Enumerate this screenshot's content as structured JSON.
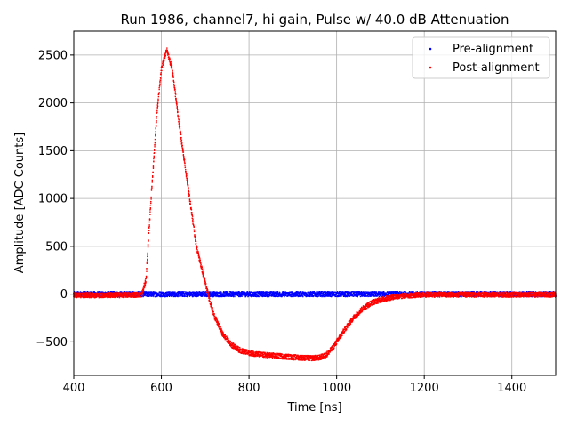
{
  "chart_data": {
    "type": "scatter",
    "title": "Run 1986, channel7, hi gain, Pulse w/ 40.0 dB Attenuation",
    "xlabel": "Time [ns]",
    "ylabel": "Amplitude [ADC Counts]",
    "xlim": [
      400,
      1500
    ],
    "ylim": [
      -850,
      2750
    ],
    "xticks": [
      400,
      600,
      800,
      1000,
      1200,
      1400
    ],
    "yticks": [
      -500,
      0,
      500,
      1000,
      1500,
      2000,
      2500
    ],
    "grid": true,
    "legend_position": "top-right",
    "series": [
      {
        "name": "Pre-alignment",
        "color": "#0000ff",
        "x": [
          400,
          500,
          560,
          580,
          600,
          610,
          620,
          640,
          660,
          680,
          700,
          720,
          740,
          760,
          800,
          850,
          900,
          950,
          970,
          1000,
          1050,
          1100,
          1150,
          1200,
          1300,
          1400,
          1500
        ],
        "y": [
          0,
          0,
          0,
          0,
          0,
          0,
          0,
          0,
          0,
          0,
          0,
          0,
          0,
          0,
          0,
          0,
          0,
          0,
          0,
          0,
          0,
          0,
          0,
          0,
          0,
          0,
          0
        ]
      },
      {
        "name": "Post-alignment",
        "color": "#ff0000",
        "x": [
          400,
          500,
          555,
          565,
          575,
          590,
          600,
          612,
          625,
          640,
          660,
          680,
          700,
          710,
          720,
          740,
          760,
          780,
          800,
          830,
          860,
          900,
          940,
          960,
          975,
          990,
          1000,
          1020,
          1040,
          1060,
          1080,
          1100,
          1130,
          1160,
          1200,
          1250,
          1300,
          1400,
          1500
        ],
        "y": [
          -10,
          -10,
          -5,
          150,
          900,
          1900,
          2350,
          2560,
          2350,
          1800,
          1150,
          500,
          120,
          -60,
          -220,
          -420,
          -530,
          -590,
          -615,
          -635,
          -645,
          -660,
          -670,
          -665,
          -640,
          -570,
          -500,
          -360,
          -240,
          -150,
          -90,
          -60,
          -30,
          -15,
          -5,
          -5,
          -5,
          -5,
          -5
        ]
      }
    ]
  }
}
